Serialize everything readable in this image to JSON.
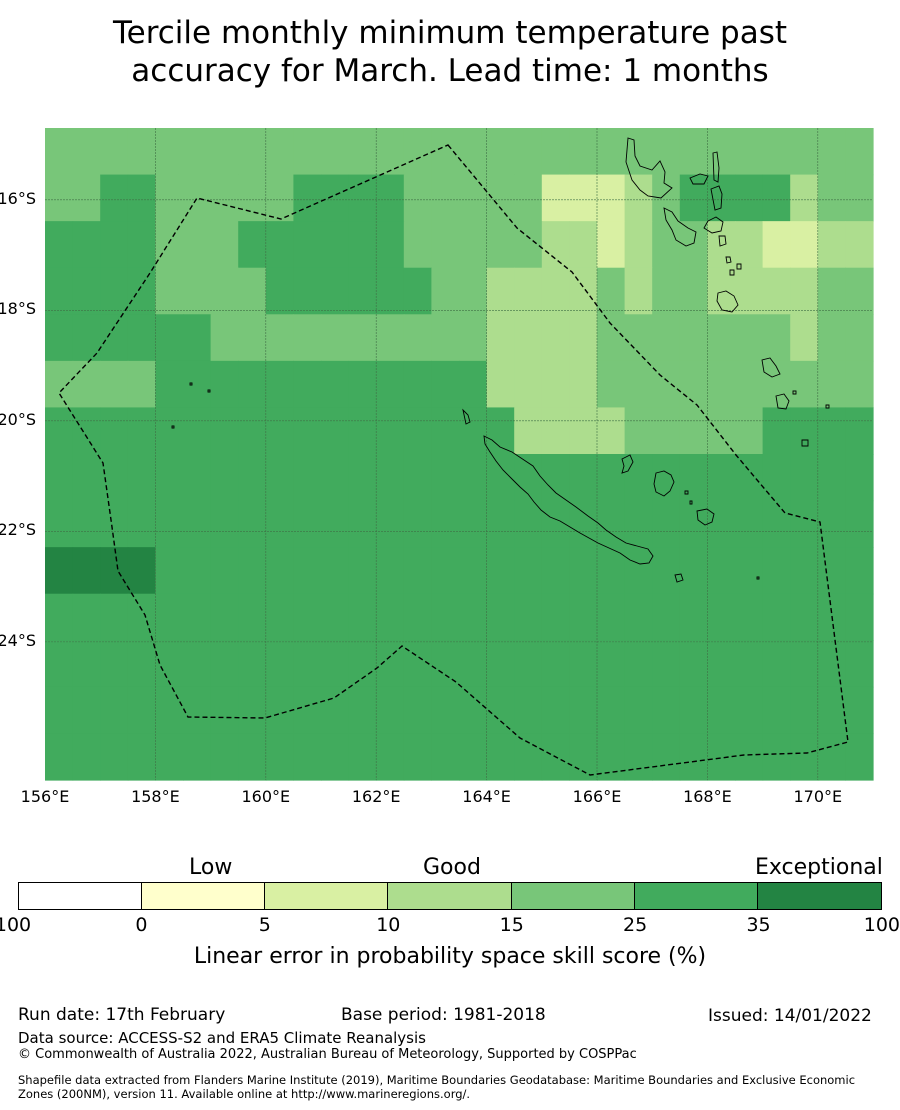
{
  "title": {
    "line1": "Tercile monthly minimum temperature past",
    "line2": "accuracy for March. Lead time: 1 months"
  },
  "map": {
    "lat_labels": [
      "16°S",
      "18°S",
      "20°S",
      "22°S",
      "24°S"
    ],
    "lon_labels": [
      "156°E",
      "158°E",
      "160°E",
      "162°E",
      "164°E",
      "166°E",
      "168°E",
      "170°E"
    ],
    "lon_range": [
      156,
      171
    ],
    "lat_range": [
      -14.7,
      -26.5
    ],
    "grid_resolution_deg": 0.83,
    "colors": {
      "c1": "#ffffcc",
      "c2": "#d9f0a3",
      "c3": "#addd8e",
      "c4": "#78c679",
      "c5": "#41ab5d",
      "c6": "#238443"
    },
    "skill_grid": [
      "444444444444444444444444444444",
      "445544444555544444222345555344",
      "555544455555544444332344332233",
      "555544445555554433334344333344",
      "555555444444444433334444444344",
      "444455555555555533334444444444",
      "555555555555555553333444445555",
      "555555555555555555555555555555",
      "555555555555555555555555555555",
      "666655555555555555555555555555",
      "555555555555555555555555555555",
      "555555555555555555555555555555",
      "555555555555555555555555555555",
      "555555555555555555555555555555"
    ]
  },
  "legend": {
    "categories": [
      "Low",
      "Good",
      "Exceptional"
    ],
    "bins": [
      {
        "color": "#ffffff",
        "from": "-100",
        "to": "0"
      },
      {
        "color": "#ffffcc",
        "from": "0",
        "to": "5"
      },
      {
        "color": "#d9f0a3",
        "from": "5",
        "to": "10"
      },
      {
        "color": "#addd8e",
        "from": "10",
        "to": "15"
      },
      {
        "color": "#78c679",
        "from": "15",
        "to": "25"
      },
      {
        "color": "#41ab5d",
        "from": "25",
        "to": "35"
      },
      {
        "color": "#238443",
        "from": "35",
        "to": "100"
      }
    ],
    "ticks": [
      "-100",
      "0",
      "5",
      "10",
      "15",
      "25",
      "35",
      "100"
    ],
    "title": "Linear error in probability space skill score (%)"
  },
  "footer": {
    "run_date": "Run date: 17th February",
    "base_period": "Base period: 1981-2018",
    "issued": "Issued: 14/01/2022",
    "data_source": "Data source: ACCESS-S2 and ERA5 Climate Reanalysis",
    "copyright": "© Commonwealth of Australia 2022, Australian Bureau of Meteorology, Supported by COSPPac",
    "shapefile_line1": "Shapefile data extracted from Flanders Marine Institute (2019), Maritime Boundaries Geodatabase: Maritime Boundaries and Exclusive Economic",
    "shapefile_line2": "Zones (200NM), version 11. Available online at http://www.marineregions.org/."
  }
}
